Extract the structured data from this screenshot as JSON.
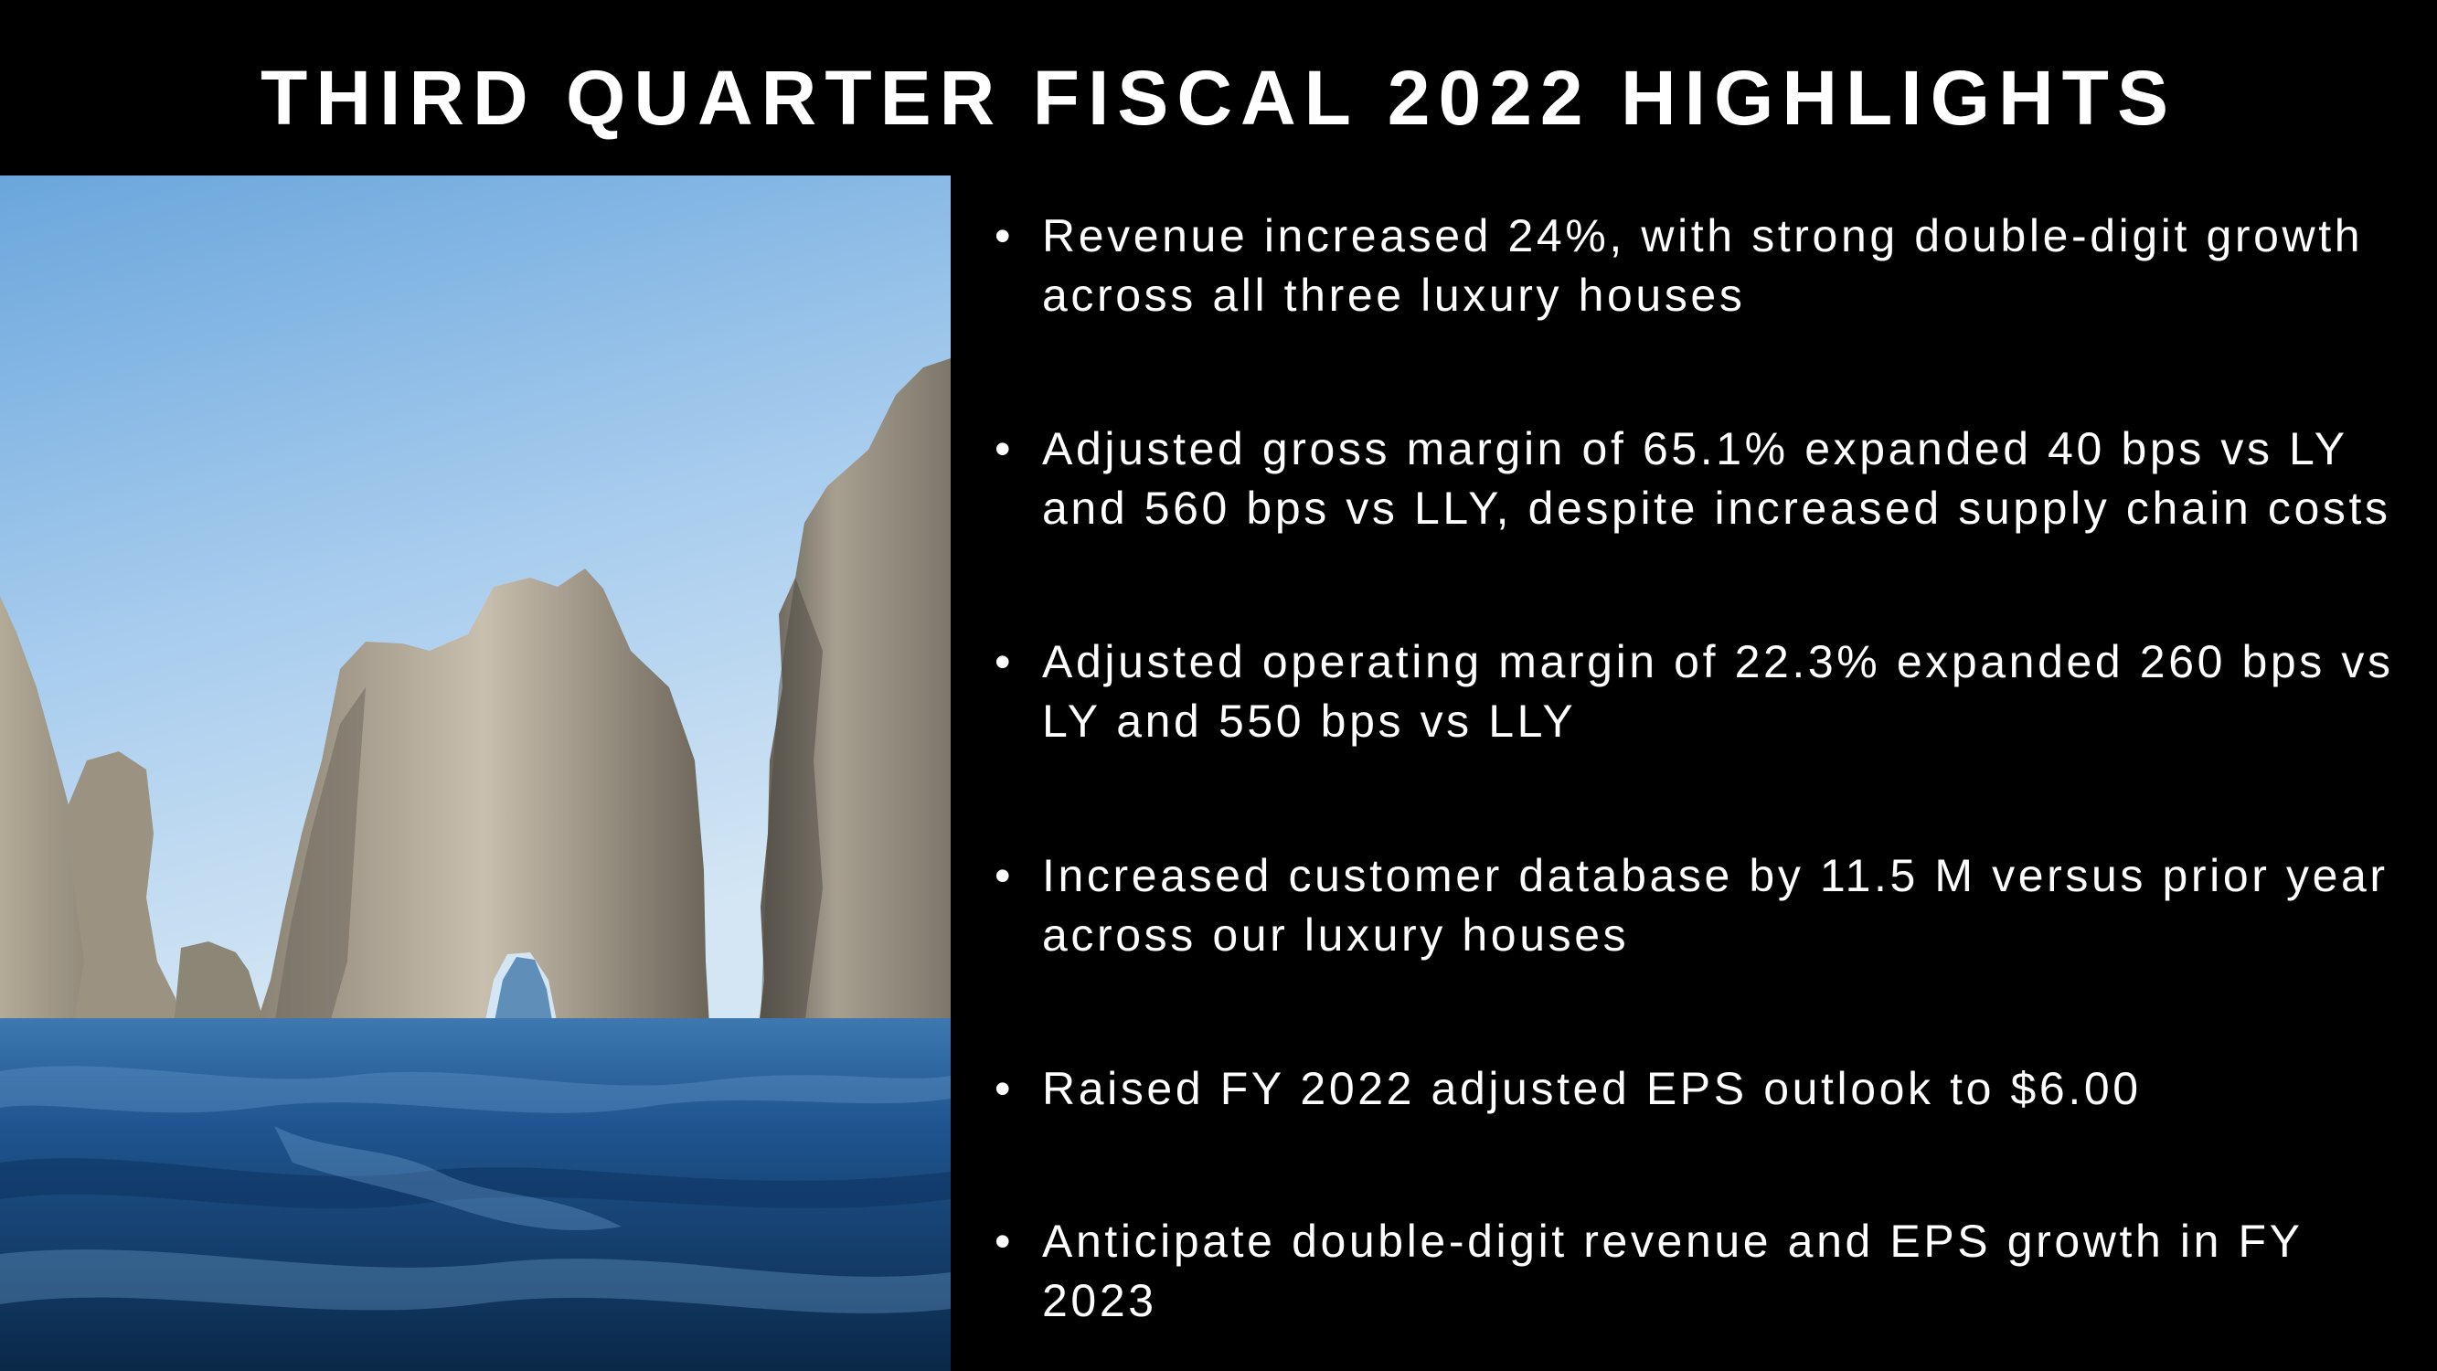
{
  "slide": {
    "title": "THIRD QUARTER FISCAL 2022 HIGHLIGHTS",
    "bullet_glyph": "•",
    "bullets": [
      {
        "text": "Revenue increased 24%, with strong double-digit growth across all three luxury houses"
      },
      {
        "text": "Adjusted gross margin of 65.1% expanded 40 bps vs LY and 560 bps vs LLY, despite increased supply chain costs"
      },
      {
        "text": "Adjusted operating margin of 22.3% expanded 260 bps vs LY and 550 bps vs LLY"
      },
      {
        "text": "Increased customer database by 11.5 M versus prior year across our luxury houses"
      },
      {
        "text": "Raised FY 2022 adjusted EPS outlook to $6.00"
      },
      {
        "text": "Anticipate double-digit revenue and EPS growth in FY 2023"
      }
    ]
  },
  "colors": {
    "background": "#000000",
    "text": "#ffffff",
    "sky_top": "#6fa8dc",
    "sea": "#1d4f86"
  }
}
